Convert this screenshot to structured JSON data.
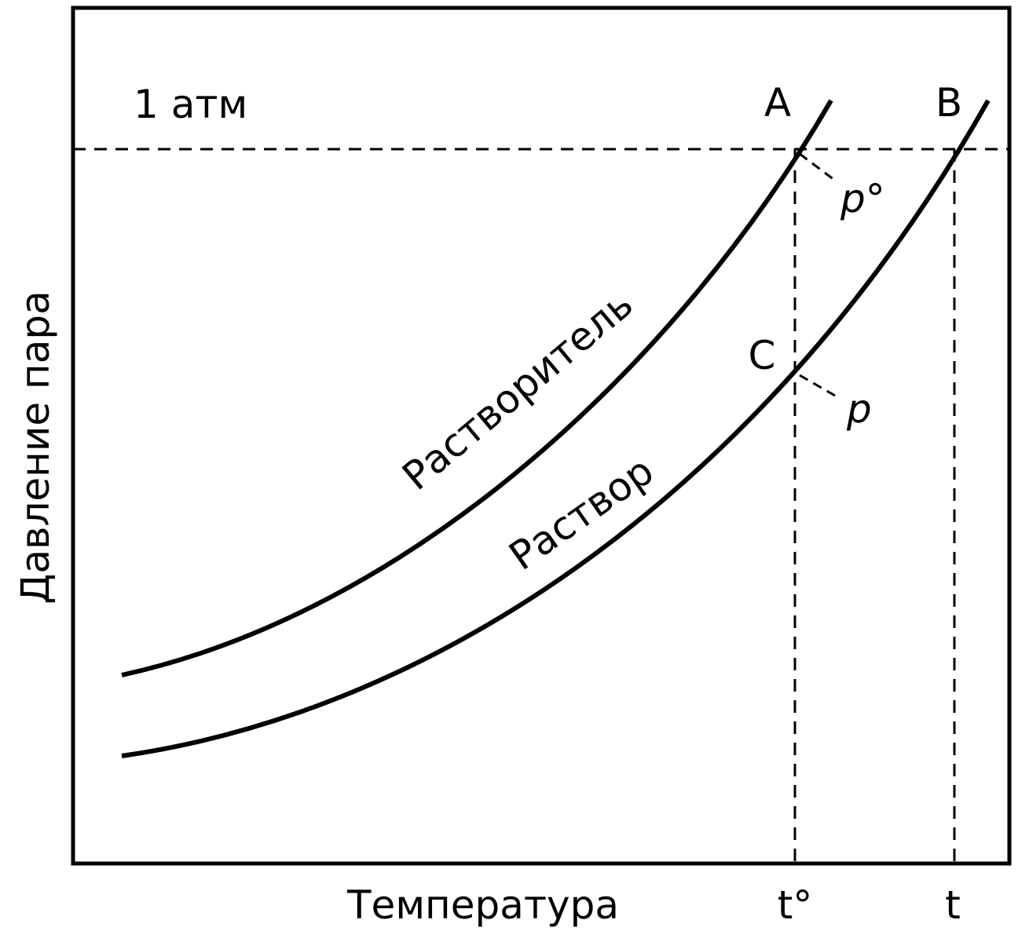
{
  "axes": {
    "y_label": "Давление пара",
    "x_label": "Температура"
  },
  "reference_line": {
    "label": "1 атм"
  },
  "curves": [
    {
      "label": "Растворитель"
    },
    {
      "label": "Раствор"
    }
  ],
  "points": [
    {
      "label": "A"
    },
    {
      "label": "B"
    },
    {
      "label": "C"
    }
  ],
  "pressures": [
    {
      "label": "p°"
    },
    {
      "label": "p"
    }
  ],
  "temperatures": [
    {
      "label": "t°"
    },
    {
      "label": "t"
    }
  ]
}
